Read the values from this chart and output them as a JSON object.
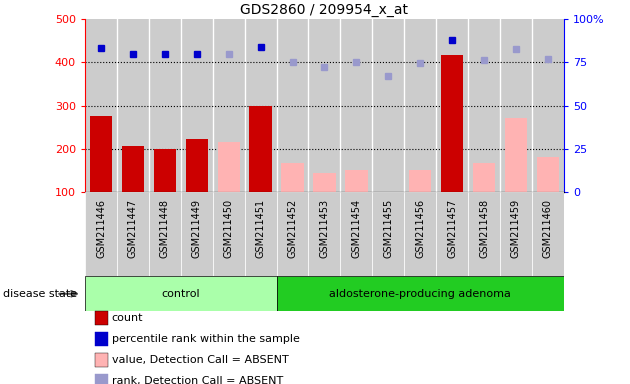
{
  "title": "GDS2860 / 209954_x_at",
  "samples": [
    "GSM211446",
    "GSM211447",
    "GSM211448",
    "GSM211449",
    "GSM211450",
    "GSM211451",
    "GSM211452",
    "GSM211453",
    "GSM211454",
    "GSM211455",
    "GSM211456",
    "GSM211457",
    "GSM211458",
    "GSM211459",
    "GSM211460"
  ],
  "n_control": 6,
  "n_adenoma": 9,
  "count_present": [
    275,
    207,
    200,
    223,
    null,
    298,
    null,
    null,
    null,
    null,
    null,
    418,
    null,
    null,
    null
  ],
  "count_absent": [
    null,
    null,
    null,
    null,
    215,
    null,
    168,
    143,
    152,
    null,
    152,
    null,
    168,
    272,
    180
  ],
  "rank_present": [
    434,
    420,
    420,
    420,
    null,
    435,
    null,
    null,
    null,
    null,
    null,
    453,
    null,
    null,
    null
  ],
  "rank_absent": [
    null,
    null,
    null,
    null,
    420,
    null,
    400,
    390,
    400,
    368,
    398,
    null,
    405,
    430,
    408
  ],
  "ylim_left": [
    100,
    500
  ],
  "ylim_right": [
    0,
    100
  ],
  "yticks_left": [
    100,
    200,
    300,
    400,
    500
  ],
  "yticks_right": [
    0,
    25,
    50,
    75,
    100
  ],
  "hlines": [
    200,
    300,
    400
  ],
  "bar_color_present": "#cc0000",
  "bar_color_absent": "#ffb3b3",
  "dot_color_present": "#0000cc",
  "dot_color_absent": "#9999cc",
  "cell_bg": "#cccccc",
  "control_bg_light": "#aaffaa",
  "control_bg_dark": "#44dd44",
  "adenoma_bg": "#22cc22",
  "legend_items": [
    {
      "label": "count",
      "color": "#cc0000",
      "type": "rect"
    },
    {
      "label": "percentile rank within the sample",
      "color": "#0000cc",
      "type": "rect"
    },
    {
      "label": "value, Detection Call = ABSENT",
      "color": "#ffb3b3",
      "type": "rect"
    },
    {
      "label": "rank, Detection Call = ABSENT",
      "color": "#9999cc",
      "type": "rect"
    }
  ]
}
